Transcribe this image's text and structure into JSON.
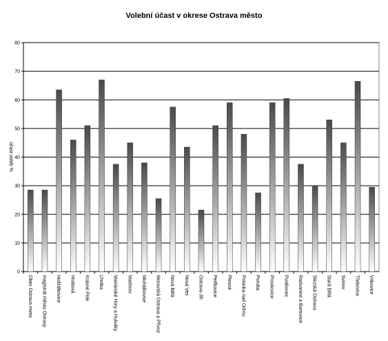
{
  "chart_data": {
    "type": "bar",
    "title": "Volební účast v okrese Ostrava město",
    "xlabel": "",
    "ylabel": "účast voleb %",
    "ylim": [
      0,
      80
    ],
    "yticks": [
      0,
      10,
      20,
      30,
      40,
      50,
      60,
      70,
      80
    ],
    "grid": true,
    "legend": "none",
    "categories": [
      "Obec Ostrava mimo",
      "magistrát města Ostravy",
      "Hošťálkovice",
      "Hrabová",
      "Krásné Pole",
      "Lhotka",
      "Mariánské Hory a Hulváky",
      "Martinov",
      "Michálkovice",
      "Moravská Ostrava a Přívoz",
      "Nová Bělá",
      "Nová Ves",
      "Ostrava-Jih",
      "Petřkovice",
      "Plesná",
      "Polanka nad Odrou",
      "Poruba",
      "Proskovice",
      "Pustkovec",
      "Radvanice a Bartovice",
      "Slezská Ostrava",
      "Stará Bělá",
      "Svinov",
      "Třebovice",
      "Vítkovice"
    ],
    "values": [
      28.5,
      28.5,
      63.5,
      46.0,
      51.0,
      67.0,
      37.5,
      45.0,
      38.0,
      25.5,
      57.5,
      43.5,
      21.5,
      51.0,
      59.0,
      48.0,
      27.5,
      59.0,
      60.5,
      37.5,
      30.0,
      53.0,
      45.0,
      66.5,
      29.5
    ],
    "colors": {
      "bar_light": "#ffffff",
      "bar_dark": "#4a4a4a",
      "grid": "#000000",
      "plot_bg": "#ffffff"
    }
  }
}
